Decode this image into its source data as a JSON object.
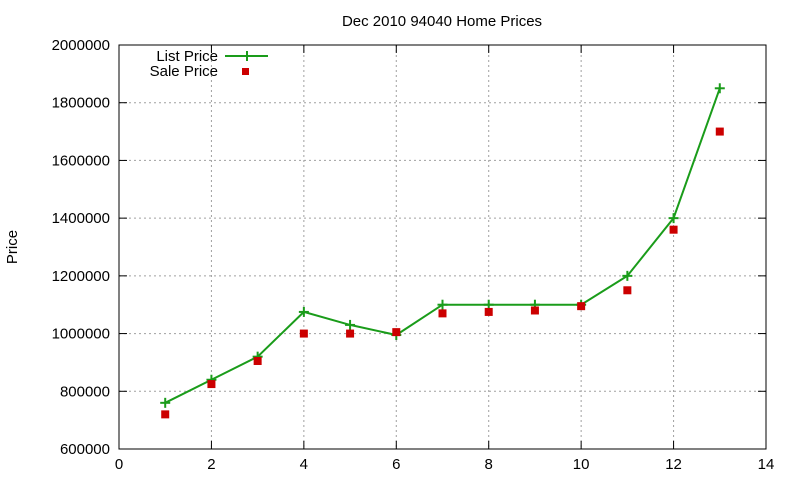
{
  "chart_data": {
    "type": "line",
    "title": "Dec 2010 94040 Home Prices",
    "xlabel": "",
    "ylabel": "Price",
    "xlim": [
      0,
      14
    ],
    "ylim": [
      600000,
      2000000
    ],
    "x_ticks": [
      0,
      2,
      4,
      6,
      8,
      10,
      12,
      14
    ],
    "y_ticks": [
      600000,
      800000,
      1000000,
      1200000,
      1400000,
      1600000,
      1800000,
      2000000
    ],
    "grid": true,
    "legend_position": "top-left",
    "series": [
      {
        "name": "List Price",
        "style": "line-with-plus-markers",
        "color": "#1a9c1a",
        "x": [
          1,
          2,
          3,
          4,
          5,
          6,
          7,
          8,
          9,
          10,
          11,
          12,
          13
        ],
        "values": [
          760000,
          840000,
          920000,
          1075000,
          1030000,
          995000,
          1100000,
          1100000,
          1100000,
          1100000,
          1200000,
          1400000,
          1850000
        ]
      },
      {
        "name": "Sale Price",
        "style": "square-markers",
        "color": "#cc0000",
        "x": [
          1,
          2,
          3,
          4,
          5,
          6,
          7,
          8,
          9,
          10,
          11,
          12,
          13
        ],
        "values": [
          720000,
          825000,
          905000,
          1000000,
          1000000,
          1005000,
          1070000,
          1075000,
          1080000,
          1095000,
          1150000,
          1360000,
          1700000
        ]
      }
    ]
  }
}
